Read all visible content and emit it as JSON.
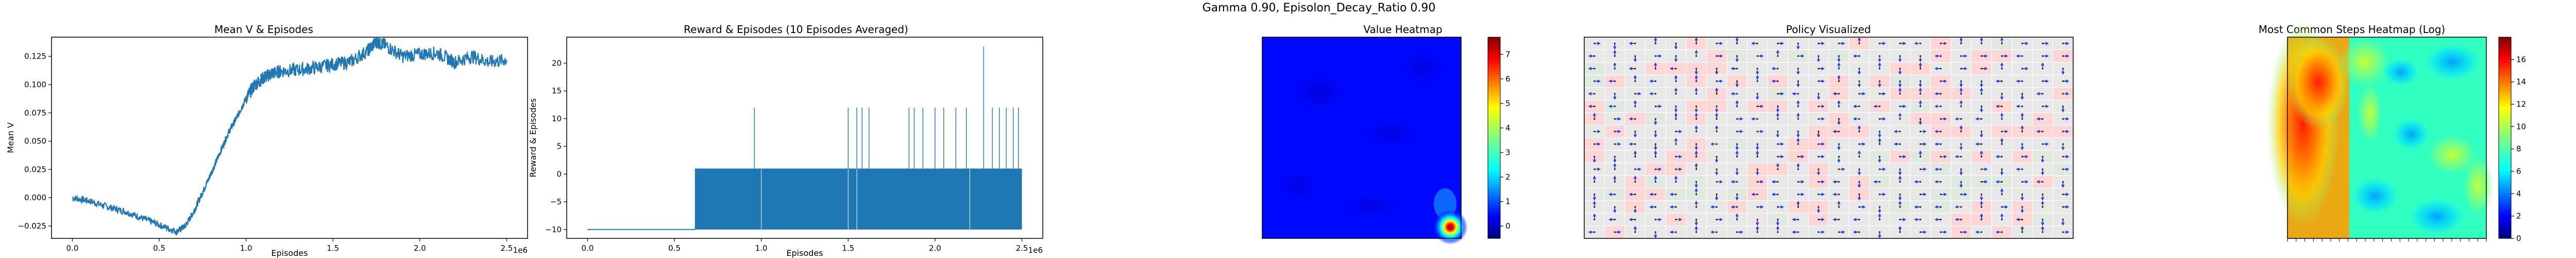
{
  "suptitle": "Gamma  0.90, Episolon_Decay_Ratio 0.90",
  "chart_data": [
    {
      "type": "line",
      "title": "Mean V & Episodes",
      "xlabel": "Episodes",
      "ylabel": "Mean V",
      "x_offset_text": "1e6",
      "xlim": [
        -0.12,
        2.62
      ],
      "ylim": [
        -0.036,
        0.142
      ],
      "x_ticks": [
        0.0,
        0.5,
        1.0,
        1.5,
        2.0,
        2.5
      ],
      "y_ticks": [
        -0.025,
        0.0,
        0.025,
        0.05,
        0.075,
        0.1,
        0.125
      ],
      "y_tick_labels": [
        "−0.025",
        "0.000",
        "0.025",
        "0.050",
        "0.075",
        "0.100",
        "0.125"
      ],
      "x_tick_labels": [
        "0.0",
        "0.5",
        "1.0",
        "1.5",
        "2.0",
        "2.5"
      ],
      "color": "#1f77b4",
      "series": [
        {
          "x": [
            0.0,
            0.1,
            0.2,
            0.3,
            0.4,
            0.5,
            0.6,
            0.65,
            0.7,
            0.75,
            0.8,
            0.85,
            0.9,
            0.95,
            1.0,
            1.05,
            1.1,
            1.15,
            1.2,
            1.3,
            1.4,
            1.5,
            1.6,
            1.7,
            1.75,
            1.8,
            1.9,
            2.0,
            2.1,
            2.2,
            2.3,
            2.4,
            2.5
          ],
          "values": [
            0.0,
            -0.003,
            -0.008,
            -0.012,
            -0.018,
            -0.024,
            -0.03,
            -0.025,
            -0.012,
            0.005,
            0.022,
            0.04,
            0.058,
            0.072,
            0.088,
            0.1,
            0.106,
            0.11,
            0.112,
            0.113,
            0.115,
            0.118,
            0.12,
            0.13,
            0.138,
            0.135,
            0.125,
            0.127,
            0.128,
            0.12,
            0.125,
            0.12,
            0.122
          ]
        }
      ]
    },
    {
      "type": "bar",
      "title": "Reward & Episodes (10 Episodes Averaged)",
      "xlabel": "Episodes",
      "ylabel": "Reward & Episodes",
      "x_offset_text": "1e6",
      "xlim": [
        -0.12,
        2.62
      ],
      "ylim": [
        -11.6,
        24.7
      ],
      "x_ticks": [
        0.0,
        0.5,
        1.0,
        1.5,
        2.0,
        2.5
      ],
      "x_tick_labels": [
        "0.0",
        "0.5",
        "1.0",
        "1.5",
        "2.0",
        "2.5"
      ],
      "y_ticks": [
        -10,
        -5,
        0,
        5,
        10,
        15,
        20
      ],
      "y_tick_labels": [
        "−10",
        "−5",
        "0",
        "5",
        "10",
        "15",
        "20"
      ],
      "baseline": -10,
      "color": "#1f77b4",
      "solid_band": {
        "x_start": 0.62,
        "x_end": 2.5,
        "top": 1
      },
      "spikes": [
        {
          "x": 0.64,
          "value": 1
        },
        {
          "x": 0.68,
          "value": 1
        },
        {
          "x": 0.72,
          "value": 1
        },
        {
          "x": 0.76,
          "value": 1
        },
        {
          "x": 0.8,
          "value": 1
        },
        {
          "x": 0.84,
          "value": 1
        },
        {
          "x": 0.9,
          "value": 1
        },
        {
          "x": 0.96,
          "value": 12
        },
        {
          "x": 1.5,
          "value": 12
        },
        {
          "x": 1.55,
          "value": 12
        },
        {
          "x": 1.58,
          "value": 12
        },
        {
          "x": 1.62,
          "value": 12
        },
        {
          "x": 1.85,
          "value": 12
        },
        {
          "x": 1.88,
          "value": 12
        },
        {
          "x": 1.93,
          "value": 12
        },
        {
          "x": 2.0,
          "value": 12
        },
        {
          "x": 2.05,
          "value": 12
        },
        {
          "x": 2.12,
          "value": 12
        },
        {
          "x": 2.18,
          "value": 12
        },
        {
          "x": 2.28,
          "value": 23
        },
        {
          "x": 2.33,
          "value": 12
        },
        {
          "x": 2.37,
          "value": 12
        },
        {
          "x": 2.41,
          "value": 12
        },
        {
          "x": 2.45,
          "value": 12
        },
        {
          "x": 2.48,
          "value": 12
        }
      ]
    },
    {
      "type": "heatmap",
      "title": "Value Heatmap",
      "colormap": "jet",
      "colorbar_ticks": [
        0,
        1,
        2,
        3,
        4,
        5,
        6,
        7
      ],
      "colorbar_range": [
        -0.5,
        7.7
      ],
      "values_note_free": true,
      "hotspot": {
        "row_frac": 0.95,
        "col_frac": 0.95,
        "value": 7.5
      }
    },
    {
      "type": "heatmap",
      "title": "Policy Visualized",
      "grid_rows": 16,
      "grid_cols": 24
    },
    {
      "type": "heatmap",
      "title": "Most Common Steps Heatmap (Log)",
      "colormap": "jet",
      "colorbar_ticks": [
        0,
        2,
        4,
        6,
        8,
        10,
        12,
        14,
        16
      ],
      "colorbar_range": [
        0,
        18
      ]
    }
  ]
}
